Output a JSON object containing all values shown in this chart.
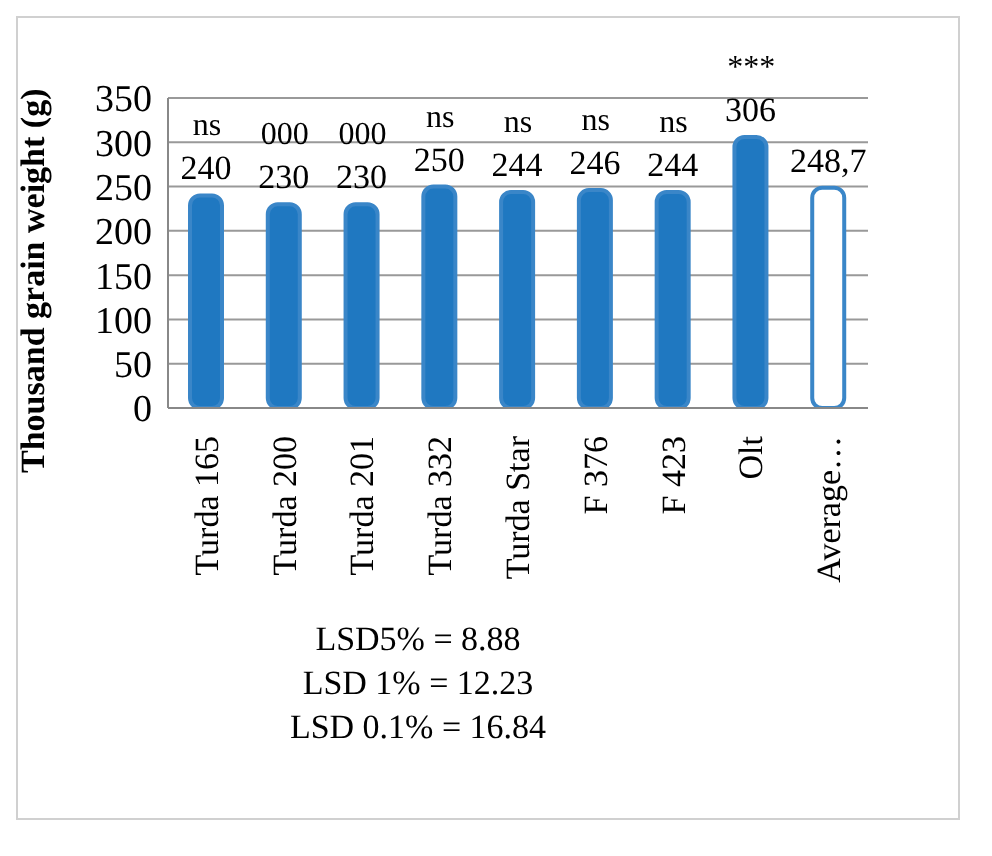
{
  "chart_data": {
    "type": "bar",
    "ylabel": "Thousand grain weight (g)",
    "categories": [
      "Turda 165",
      "Turda 200",
      "Turda 201",
      "Turda 332",
      "Turda Star",
      "F 376",
      "F 423",
      "Olt",
      "Average…"
    ],
    "values": [
      240,
      230,
      230,
      250,
      244,
      246,
      244,
      306,
      248.7
    ],
    "value_labels": [
      "240",
      "230",
      "230",
      "250",
      "244",
      "246",
      "244",
      "306",
      "248,7"
    ],
    "colors": [
      "#1f78c1",
      "#1f78c1",
      "#1f78c1",
      "#1f78c1",
      "#1f78c1",
      "#1f78c1",
      "#1f78c1",
      "#1f78c1",
      "#ffffff"
    ],
    "ylim": [
      0,
      350
    ],
    "yticks": [
      0,
      50,
      100,
      150,
      200,
      250,
      300,
      350
    ],
    "grid": "y",
    "legend": false,
    "annotations": [
      {
        "text": "ns",
        "x": "Turda 165",
        "y": 240
      },
      {
        "text": "000",
        "x": "Turda 200",
        "y": 230
      },
      {
        "text": "000",
        "x": "Turda 201",
        "y": 230
      },
      {
        "text": "ns",
        "x": "Turda 332",
        "y": 250
      },
      {
        "text": "ns",
        "x": "Turda Star",
        "y": 244
      },
      {
        "text": "ns",
        "x": "F 376",
        "y": 246
      },
      {
        "text": "ns",
        "x": "F 423",
        "y": 244
      },
      {
        "text": "***",
        "x": "Olt",
        "y": 306
      },
      "LSD5% = 8.88",
      "LSD 1% = 12.23",
      "LSD 0.1% = 16.84"
    ]
  }
}
